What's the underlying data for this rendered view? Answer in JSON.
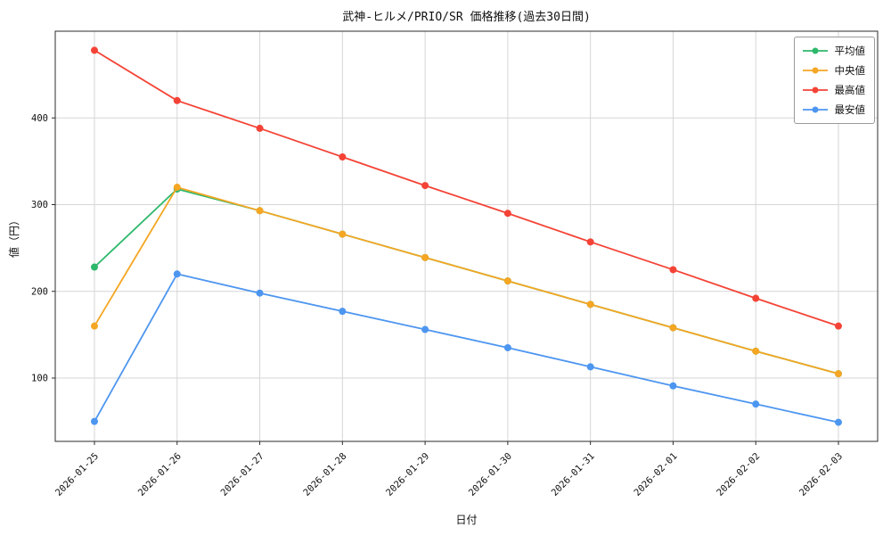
{
  "colors": {
    "background": "#ffffff",
    "grid": "#d6d6d6",
    "frame": "#2b2b2b",
    "text": "#111111"
  },
  "chart_data": {
    "type": "line",
    "title": "武神-ヒルメ/PRIO/SR 価格推移(過去30日間)",
    "xlabel": "日付",
    "ylabel": "値（円）",
    "x": [
      "2026-01-25",
      "2026-01-26",
      "2026-01-27",
      "2026-01-28",
      "2026-01-29",
      "2026-01-30",
      "2026-01-31",
      "2026-02-01",
      "2026-02-02",
      "2026-02-03"
    ],
    "yticks": [
      100,
      200,
      300,
      400
    ],
    "ylim": [
      27,
      500
    ],
    "grid": true,
    "legend_position": "upper right",
    "series": [
      {
        "key": "average",
        "name": "平均値",
        "color": "#2eb86b",
        "values": [
          228,
          318,
          293,
          266,
          239,
          212,
          185,
          158,
          131,
          105
        ]
      },
      {
        "key": "median",
        "name": "中央値",
        "color": "#f5a623",
        "values": [
          160,
          320,
          293,
          266,
          239,
          212,
          185,
          158,
          131,
          105
        ]
      },
      {
        "key": "max",
        "name": "最高値",
        "color": "#f44336",
        "values": [
          478,
          420,
          388,
          355,
          322,
          290,
          257,
          225,
          192,
          160
        ]
      },
      {
        "key": "min",
        "name": "最安値",
        "color": "#4d96f0",
        "values": [
          50,
          220,
          198,
          177,
          156,
          135,
          113,
          91,
          70,
          49
        ]
      }
    ]
  }
}
